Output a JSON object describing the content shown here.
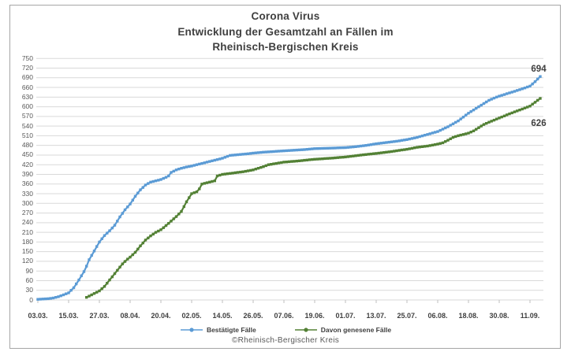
{
  "title": {
    "line1": "Corona Virus",
    "line2": "Entwicklung der Gesamtzahl an Fällen im",
    "line3": "Rheinisch-Bergischen Kreis"
  },
  "footer": {
    "credit": "©Rheinisch-Bergischer Kreis"
  },
  "legend": {
    "items": [
      {
        "label": "Bestätigte Fälle",
        "color": "#5B9BD5"
      },
      {
        "label": "Davon genesene Fälle",
        "color": "#538135"
      }
    ]
  },
  "colors": {
    "confirmed_line": "#5B9BD5",
    "recovered_line": "#538135",
    "gridline": "#d9d9d9",
    "tick": "#bfbfbf",
    "frame_border": "#a6a6a6",
    "title_text": "#404040",
    "axis_text": "#595959"
  },
  "chart_data": {
    "type": "line",
    "title": "Corona Virus — Entwicklung der Gesamtzahl an Fällen im Rheinisch-Bergischen Kreis",
    "xlabel": "",
    "ylabel": "",
    "ylim": [
      0,
      750
    ],
    "y_tick_step": 30,
    "grid": "horizontal",
    "legend_position": "bottom",
    "x_tick_labels": [
      "03.03.",
      "15.03.",
      "27.03.",
      "08.04.",
      "20.04.",
      "02.05.",
      "14.05.",
      "26.05.",
      "07.06.",
      "19.06.",
      "01.07.",
      "13.07.",
      "25.07.",
      "06.08.",
      "18.08.",
      "30.08.",
      "11.09."
    ],
    "x_tick_interval_days": 12,
    "x_start_date": "03.03.",
    "series": [
      {
        "name": "Bestätigte Fälle",
        "color": "#5B9BD5",
        "end_label": "694",
        "points_day_value": [
          [
            0,
            2
          ],
          [
            2,
            3
          ],
          [
            4,
            4
          ],
          [
            6,
            6
          ],
          [
            8,
            10
          ],
          [
            10,
            16
          ],
          [
            12,
            22
          ],
          [
            14,
            38
          ],
          [
            16,
            62
          ],
          [
            18,
            88
          ],
          [
            19,
            105
          ],
          [
            20,
            125
          ],
          [
            22,
            152
          ],
          [
            24,
            180
          ],
          [
            26,
            200
          ],
          [
            28,
            215
          ],
          [
            30,
            232
          ],
          [
            32,
            258
          ],
          [
            34,
            280
          ],
          [
            36,
            298
          ],
          [
            38,
            322
          ],
          [
            40,
            342
          ],
          [
            42,
            357
          ],
          [
            44,
            366
          ],
          [
            46,
            370
          ],
          [
            48,
            374
          ],
          [
            50,
            381
          ],
          [
            51,
            385
          ],
          [
            52,
            396
          ],
          [
            54,
            404
          ],
          [
            56,
            409
          ],
          [
            58,
            413
          ],
          [
            60,
            416
          ],
          [
            64,
            424
          ],
          [
            68,
            432
          ],
          [
            72,
            440
          ],
          [
            75,
            449
          ],
          [
            78,
            451
          ],
          [
            82,
            454
          ],
          [
            84,
            456
          ],
          [
            88,
            459
          ],
          [
            92,
            461
          ],
          [
            96,
            463
          ],
          [
            100,
            465
          ],
          [
            104,
            467
          ],
          [
            108,
            470
          ],
          [
            112,
            471
          ],
          [
            116,
            472
          ],
          [
            120,
            473
          ],
          [
            124,
            476
          ],
          [
            128,
            480
          ],
          [
            132,
            485
          ],
          [
            136,
            489
          ],
          [
            140,
            493
          ],
          [
            144,
            498
          ],
          [
            148,
            505
          ],
          [
            152,
            514
          ],
          [
            156,
            523
          ],
          [
            160,
            538
          ],
          [
            164,
            556
          ],
          [
            168,
            580
          ],
          [
            172,
            600
          ],
          [
            176,
            620
          ],
          [
            178,
            627
          ],
          [
            180,
            633
          ],
          [
            184,
            643
          ],
          [
            188,
            653
          ],
          [
            192,
            664
          ],
          [
            194,
            678
          ],
          [
            196,
            694
          ]
        ]
      },
      {
        "name": "Davon genesene Fälle",
        "color": "#538135",
        "end_label": "626",
        "points_day_value": [
          [
            19,
            8
          ],
          [
            20,
            12
          ],
          [
            22,
            20
          ],
          [
            24,
            28
          ],
          [
            26,
            42
          ],
          [
            28,
            62
          ],
          [
            29,
            72
          ],
          [
            31,
            92
          ],
          [
            33,
            112
          ],
          [
            35,
            127
          ],
          [
            36,
            133
          ],
          [
            38,
            148
          ],
          [
            40,
            168
          ],
          [
            42,
            186
          ],
          [
            44,
            199
          ],
          [
            46,
            210
          ],
          [
            48,
            218
          ],
          [
            50,
            231
          ],
          [
            52,
            245
          ],
          [
            54,
            259
          ],
          [
            56,
            275
          ],
          [
            58,
            305
          ],
          [
            60,
            330
          ],
          [
            62,
            336
          ],
          [
            63,
            345
          ],
          [
            64,
            360
          ],
          [
            66,
            364
          ],
          [
            68,
            368
          ],
          [
            69,
            370
          ],
          [
            70,
            385
          ],
          [
            72,
            390
          ],
          [
            76,
            394
          ],
          [
            80,
            398
          ],
          [
            84,
            404
          ],
          [
            88,
            414
          ],
          [
            90,
            420
          ],
          [
            96,
            428
          ],
          [
            102,
            432
          ],
          [
            108,
            437
          ],
          [
            114,
            440
          ],
          [
            120,
            444
          ],
          [
            126,
            450
          ],
          [
            132,
            455
          ],
          [
            138,
            461
          ],
          [
            144,
            468
          ],
          [
            148,
            474
          ],
          [
            152,
            478
          ],
          [
            156,
            484
          ],
          [
            158,
            488
          ],
          [
            160,
            496
          ],
          [
            162,
            505
          ],
          [
            164,
            510
          ],
          [
            168,
            518
          ],
          [
            170,
            525
          ],
          [
            172,
            535
          ],
          [
            174,
            545
          ],
          [
            176,
            552
          ],
          [
            180,
            565
          ],
          [
            184,
            578
          ],
          [
            188,
            590
          ],
          [
            192,
            602
          ],
          [
            194,
            614
          ],
          [
            196,
            626
          ]
        ]
      }
    ]
  }
}
